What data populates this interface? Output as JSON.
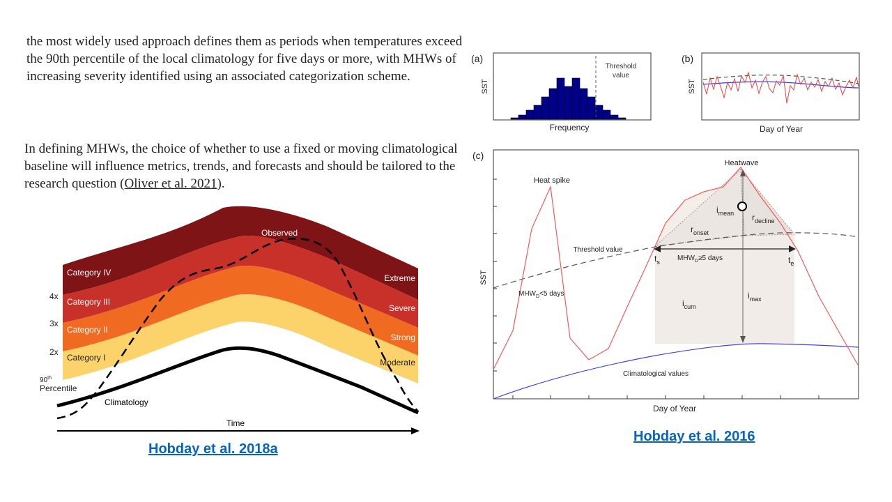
{
  "text": {
    "para1": " the most widely used approach defines them as periods when temperatures exceed the 90th percentile of the local climatology for five days or more, with MHWs of increasing severity identified using an associated categorization scheme.",
    "para2_before": "In defining MHWs, the choice of whether to use a fixed or moving climatological baseline will influence metrics, trends, and forecasts and should be tailored to the research question (",
    "para2_link": "Oliver et al. 2021",
    "para2_after": ")."
  },
  "links": {
    "left": "Hobday et al. 2018a",
    "right": "Hobday et al. 2016"
  },
  "left_figure": {
    "categories": [
      "Category IV",
      "Category III",
      "Category II",
      "Category I"
    ],
    "severities": [
      "Extreme",
      "Severe",
      "Strong",
      "Moderate"
    ],
    "multipliers": [
      "4x",
      "3x",
      "2x"
    ],
    "percentile_sup": "th",
    "percentile_num": "90",
    "percentile_word": "Percentile",
    "observed": "Observed",
    "climatology": "Climatology",
    "time": "Time",
    "colors": {
      "cat4": "#7f1416",
      "cat3": "#c8312a",
      "cat2": "#f06a22",
      "cat1": "#fcd36a",
      "base": "#fff"
    }
  },
  "panel_a": {
    "label": "(a)",
    "ylabel": "SST",
    "xlabel": "Frequency",
    "threshold_line1": "Threshold",
    "threshold_line2": "value"
  },
  "panel_b": {
    "label": "(b)",
    "ylabel": "SST",
    "xlabel": "Day of Year"
  },
  "panel_c": {
    "label": "(c)",
    "ylabel": "SST",
    "xlabel": "Day of Year",
    "heatwave": "Heatwave",
    "heat_spike": "Heat spike",
    "threshold": "Threshold value",
    "climatological": "Climatological values",
    "i_mean": "i",
    "i_mean_sub": "mean",
    "r_decline": "r",
    "r_decline_sub": "decline",
    "r_onset": "r",
    "r_onset_sub": "onset",
    "t_s": "t",
    "t_s_sub": "s",
    "t_e": "t",
    "t_e_sub": "e",
    "mhw_long": "MHW",
    "mhw_long_sub": "D",
    "mhw_long_tail": "≥5 days",
    "mhw_short": "MHW",
    "mhw_short_sub": "D",
    "mhw_short_tail": "<5 days",
    "i_cum": "i",
    "i_cum_sub": "cum",
    "i_max": "i",
    "i_max_sub": "max"
  }
}
